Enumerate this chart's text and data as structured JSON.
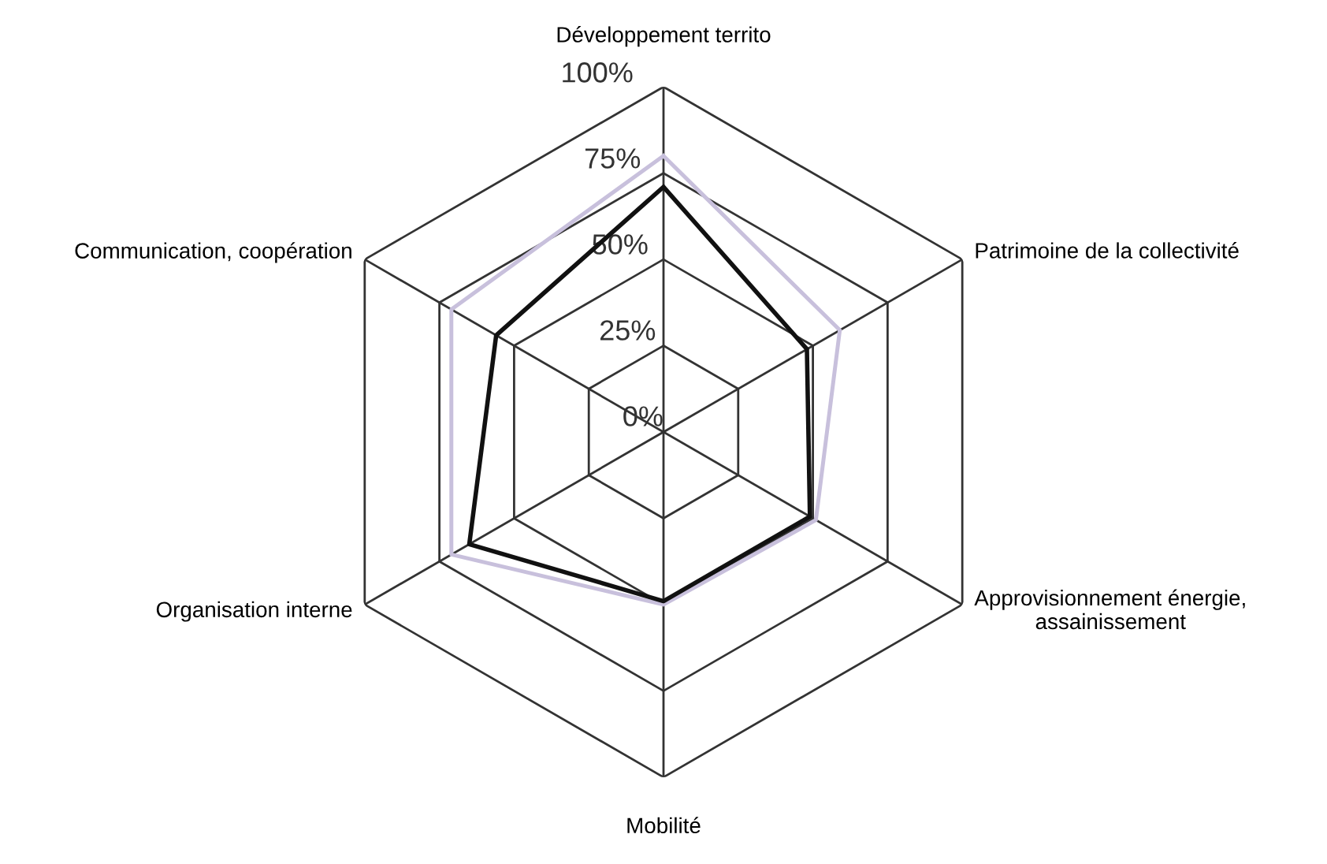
{
  "chart_data": {
    "type": "radar",
    "categories": [
      "Développement territo",
      "Patrimoine de la collectivité",
      "Approvisionnement énergie,\nassainissement",
      "Mobilité",
      "Organisation interne",
      "Communication, coopération"
    ],
    "series": [
      {
        "color": "#c8c0dc",
        "values": [
          80,
          59,
          51,
          50,
          71,
          71
        ]
      },
      {
        "color": "#111111",
        "values": [
          71,
          48,
          49,
          49,
          65,
          56
        ]
      }
    ],
    "ylim": [
      0,
      100
    ],
    "yticks": [
      {
        "value": 0,
        "label": "0%"
      },
      {
        "value": 25,
        "label": "25%"
      },
      {
        "value": 50,
        "label": "50%"
      },
      {
        "value": 75,
        "label": "75%"
      },
      {
        "value": 100,
        "label": "100%"
      }
    ],
    "grid": true,
    "legend": false,
    "marker": "none",
    "line_style": "solid"
  }
}
